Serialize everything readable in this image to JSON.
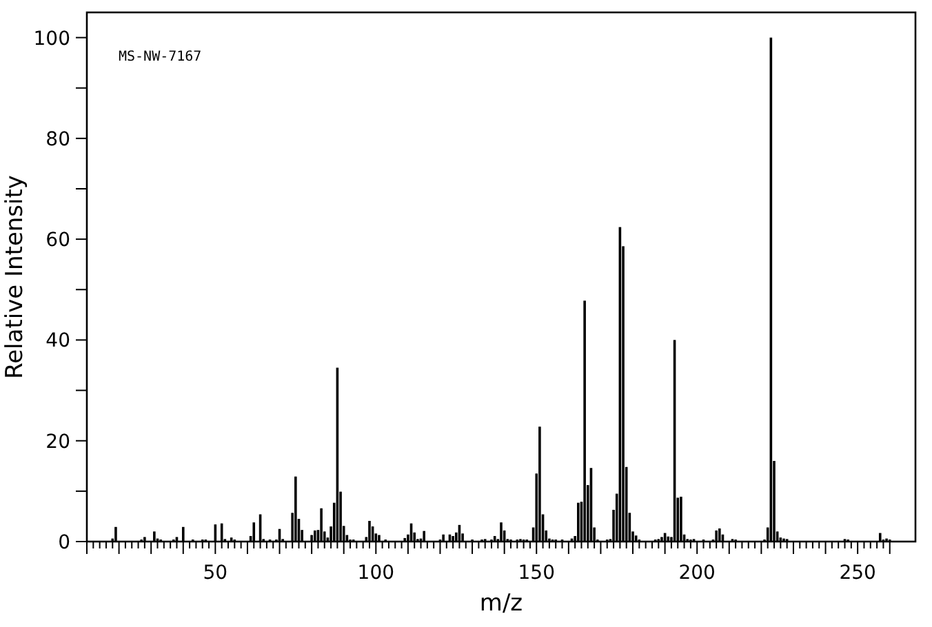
{
  "chart_data": {
    "type": "bar",
    "xlabel": "m/z",
    "ylabel": "Relative Intensity",
    "annotations": [
      "MS-NW-7167"
    ],
    "color": "#000000",
    "x": [
      18,
      19,
      27,
      28,
      31,
      32,
      33,
      37,
      38,
      40,
      43,
      46,
      47,
      50,
      52,
      53,
      55,
      56,
      61,
      62,
      64,
      65,
      67,
      69,
      70,
      71,
      74,
      75,
      76,
      77,
      80,
      81,
      82,
      83,
      84,
      85,
      86,
      87,
      88,
      89,
      90,
      91,
      92,
      93,
      97,
      98,
      99,
      100,
      101,
      103,
      109,
      110,
      111,
      112,
      113,
      114,
      115,
      120,
      121,
      123,
      124,
      125,
      126,
      127,
      130,
      133,
      134,
      136,
      137,
      138,
      139,
      140,
      141,
      142,
      144,
      145,
      146,
      147,
      149,
      150,
      151,
      152,
      153,
      154,
      155,
      156,
      158,
      161,
      162,
      163,
      164,
      165,
      166,
      167,
      168,
      169,
      172,
      173,
      174,
      175,
      176,
      177,
      178,
      179,
      180,
      181,
      182,
      187,
      188,
      189,
      190,
      191,
      192,
      193,
      194,
      195,
      196,
      197,
      198,
      199,
      202,
      205,
      206,
      207,
      208,
      211,
      212,
      221,
      222,
      223,
      224,
      225,
      226,
      227,
      228,
      246,
      247,
      257,
      258,
      259,
      260
    ],
    "values": [
      0.6,
      2.9,
      0.4,
      0.9,
      2.0,
      0.6,
      0.4,
      0.4,
      0.9,
      2.9,
      0.4,
      0.4,
      0.4,
      3.4,
      3.6,
      0.5,
      0.8,
      0.4,
      1.1,
      3.8,
      5.4,
      0.5,
      0.4,
      0.4,
      2.5,
      0.5,
      5.7,
      12.9,
      4.5,
      2.3,
      1.3,
      2.2,
      2.3,
      6.6,
      2.0,
      0.8,
      3.0,
      7.7,
      34.5,
      9.9,
      3.1,
      1.3,
      0.4,
      0.4,
      0.9,
      4.1,
      3.0,
      1.6,
      1.3,
      0.4,
      0.7,
      1.4,
      3.6,
      1.8,
      0.5,
      0.6,
      2.1,
      0.4,
      1.4,
      1.4,
      1.1,
      1.8,
      3.3,
      1.6,
      0.4,
      0.4,
      0.5,
      0.4,
      1.1,
      0.5,
      3.8,
      2.2,
      0.5,
      0.4,
      0.4,
      0.5,
      0.4,
      0.4,
      2.8,
      13.5,
      22.8,
      5.4,
      2.2,
      0.6,
      0.4,
      0.4,
      0.4,
      0.6,
      1.1,
      7.7,
      7.9,
      47.8,
      11.2,
      14.6,
      2.8,
      0.4,
      0.4,
      0.5,
      6.3,
      9.5,
      62.4,
      58.6,
      14.8,
      5.7,
      2.0,
      1.2,
      0.4,
      0.4,
      0.5,
      0.9,
      1.7,
      1.0,
      0.9,
      40,
      8.7,
      8.9,
      1.4,
      0.5,
      0.4,
      0.5,
      0.4,
      0.4,
      2.2,
      2.6,
      1.4,
      0.5,
      0.4,
      0.4,
      2.8,
      100,
      16,
      2.0,
      0.8,
      0.6,
      0.5,
      0.5,
      0.4,
      1.7,
      0.4,
      0.6,
      0.4
    ],
    "xlim": [
      10,
      268
    ],
    "ylim": [
      0,
      105
    ],
    "xticks": [
      {
        "value": 10,
        "label": null
      },
      {
        "value": 12,
        "label": null
      },
      {
        "value": 14,
        "label": null
      },
      {
        "value": 16,
        "label": null
      },
      {
        "value": 18,
        "label": null
      },
      {
        "value": 20,
        "label": null
      },
      {
        "value": 22,
        "label": null
      },
      {
        "value": 24,
        "label": null
      },
      {
        "value": 26,
        "label": null
      },
      {
        "value": 28,
        "label": null
      },
      {
        "value": 30,
        "label": null
      },
      {
        "value": 32,
        "label": null
      },
      {
        "value": 34,
        "label": null
      },
      {
        "value": 36,
        "label": null
      },
      {
        "value": 38,
        "label": null
      },
      {
        "value": 40,
        "label": null
      },
      {
        "value": 42,
        "label": null
      },
      {
        "value": 44,
        "label": null
      },
      {
        "value": 46,
        "label": null
      },
      {
        "value": 48,
        "label": null
      },
      50,
      {
        "value": 52,
        "label": null
      },
      {
        "value": 54,
        "label": null
      },
      {
        "value": 56,
        "label": null
      },
      {
        "value": 58,
        "label": null
      },
      {
        "value": 60,
        "label": null
      },
      {
        "value": 62,
        "label": null
      },
      {
        "value": 64,
        "label": null
      },
      {
        "value": 66,
        "label": null
      },
      {
        "value": 68,
        "label": null
      },
      {
        "value": 70,
        "label": null
      },
      {
        "value": 72,
        "label": null
      },
      {
        "value": 74,
        "label": null
      },
      {
        "value": 76,
        "label": null
      },
      {
        "value": 78,
        "label": null
      },
      {
        "value": 80,
        "label": null
      },
      {
        "value": 82,
        "label": null
      },
      {
        "value": 84,
        "label": null
      },
      {
        "value": 86,
        "label": null
      },
      {
        "value": 88,
        "label": null
      },
      {
        "value": 90,
        "label": null
      },
      {
        "value": 92,
        "label": null
      },
      {
        "value": 94,
        "label": null
      },
      {
        "value": 96,
        "label": null
      },
      {
        "value": 98,
        "label": null
      },
      100,
      {
        "value": 102,
        "label": null
      },
      {
        "value": 104,
        "label": null
      },
      {
        "value": 106,
        "label": null
      },
      {
        "value": 108,
        "label": null
      },
      {
        "value": 110,
        "label": null
      },
      {
        "value": 112,
        "label": null
      },
      {
        "value": 114,
        "label": null
      },
      {
        "value": 116,
        "label": null
      },
      {
        "value": 118,
        "label": null
      },
      {
        "value": 120,
        "label": null
      },
      {
        "value": 122,
        "label": null
      },
      {
        "value": 124,
        "label": null
      },
      {
        "value": 126,
        "label": null
      },
      {
        "value": 128,
        "label": null
      },
      {
        "value": 130,
        "label": null
      },
      {
        "value": 132,
        "label": null
      },
      {
        "value": 134,
        "label": null
      },
      {
        "value": 136,
        "label": null
      },
      {
        "value": 138,
        "label": null
      },
      {
        "value": 140,
        "label": null
      },
      {
        "value": 142,
        "label": null
      },
      {
        "value": 144,
        "label": null
      },
      {
        "value": 146,
        "label": null
      },
      {
        "value": 148,
        "label": null
      },
      150,
      {
        "value": 152,
        "label": null
      },
      {
        "value": 154,
        "label": null
      },
      {
        "value": 156,
        "label": null
      },
      {
        "value": 158,
        "label": null
      },
      {
        "value": 160,
        "label": null
      },
      {
        "value": 162,
        "label": null
      },
      {
        "value": 164,
        "label": null
      },
      {
        "value": 166,
        "label": null
      },
      {
        "value": 168,
        "label": null
      },
      {
        "value": 170,
        "label": null
      },
      {
        "value": 172,
        "label": null
      },
      {
        "value": 174,
        "label": null
      },
      {
        "value": 176,
        "label": null
      },
      {
        "value": 178,
        "label": null
      },
      {
        "value": 180,
        "label": null
      },
      {
        "value": 182,
        "label": null
      },
      {
        "value": 184,
        "label": null
      },
      {
        "value": 186,
        "label": null
      },
      {
        "value": 188,
        "label": null
      },
      {
        "value": 190,
        "label": null
      },
      {
        "value": 192,
        "label": null
      },
      {
        "value": 194,
        "label": null
      },
      {
        "value": 196,
        "label": null
      },
      {
        "value": 198,
        "label": null
      },
      200,
      {
        "value": 202,
        "label": null
      },
      {
        "value": 204,
        "label": null
      },
      {
        "value": 206,
        "label": null
      },
      {
        "value": 208,
        "label": null
      },
      {
        "value": 210,
        "label": null
      },
      {
        "value": 212,
        "label": null
      },
      {
        "value": 214,
        "label": null
      },
      {
        "value": 216,
        "label": null
      },
      {
        "value": 218,
        "label": null
      },
      {
        "value": 220,
        "label": null
      },
      {
        "value": 222,
        "label": null
      },
      {
        "value": 224,
        "label": null
      },
      {
        "value": 226,
        "label": null
      },
      {
        "value": 228,
        "label": null
      },
      {
        "value": 230,
        "label": null
      },
      {
        "value": 232,
        "label": null
      },
      {
        "value": 234,
        "label": null
      },
      {
        "value": 236,
        "label": null
      },
      {
        "value": 238,
        "label": null
      },
      {
        "value": 240,
        "label": null
      },
      {
        "value": 242,
        "label": null
      },
      {
        "value": 244,
        "label": null
      },
      {
        "value": 246,
        "label": null
      },
      {
        "value": 248,
        "label": null
      },
      250,
      {
        "value": 252,
        "label": null
      },
      {
        "value": 254,
        "label": null
      },
      {
        "value": 256,
        "label": null
      },
      {
        "value": 258,
        "label": null
      },
      {
        "value": 260,
        "label": null
      }
    ],
    "yticks": [
      0,
      {
        "value": 10,
        "label": null
      },
      20,
      {
        "value": 30,
        "label": null
      },
      40,
      {
        "value": 50,
        "label": null
      },
      60,
      {
        "value": 70,
        "label": null
      },
      80,
      {
        "value": 90,
        "label": null
      },
      100
    ]
  }
}
